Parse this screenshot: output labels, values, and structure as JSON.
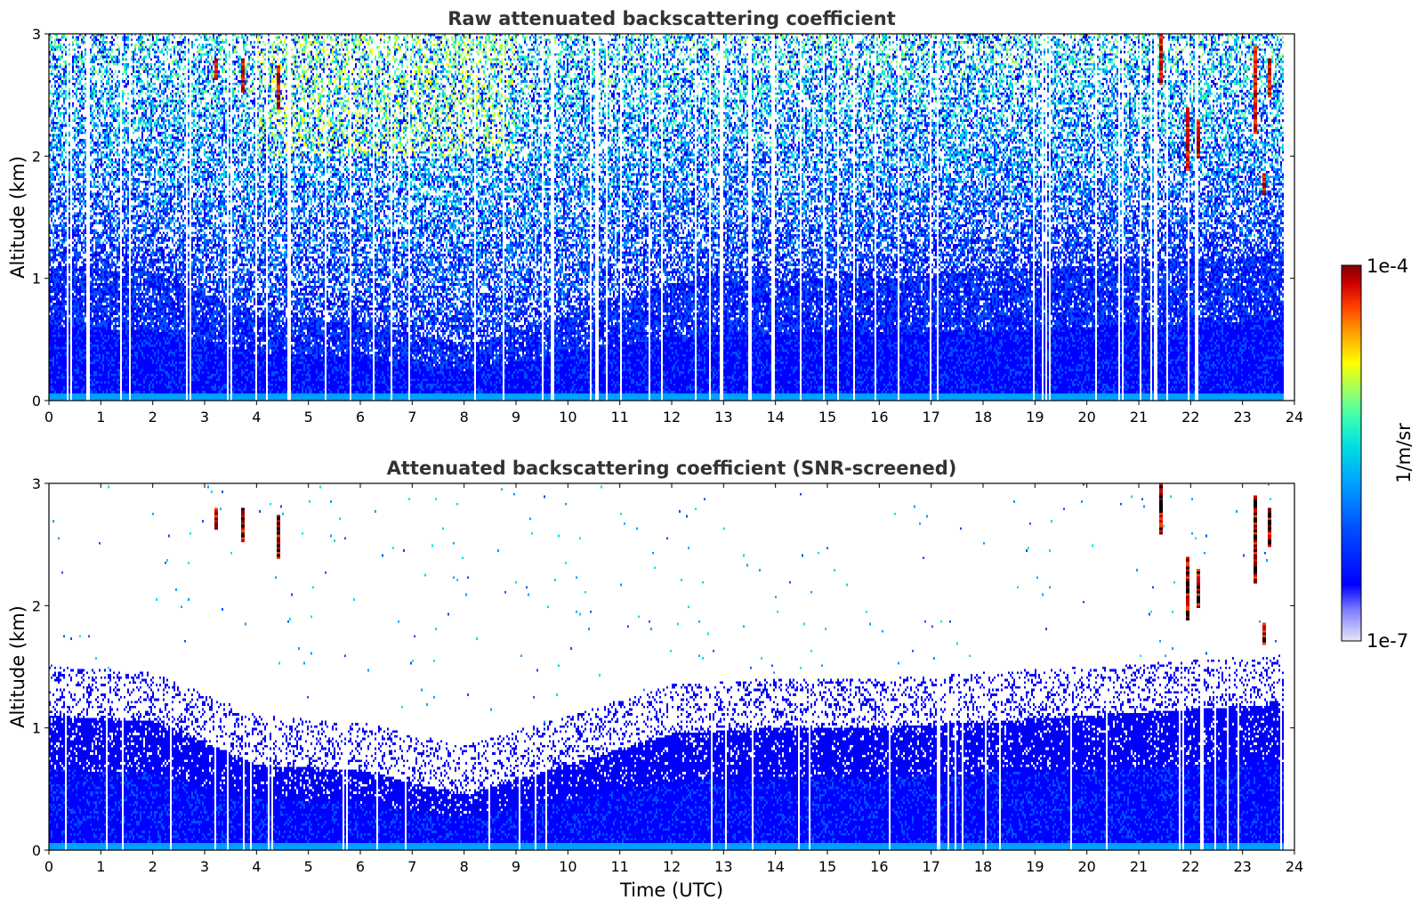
{
  "chart_data": [
    {
      "type": "heatmap",
      "title": "Raw attenuated backscattering coefficient",
      "xlabel": "",
      "ylabel": "Altitude (km)",
      "xlim": [
        0,
        24
      ],
      "ylim": [
        0,
        3
      ],
      "xticks": [
        0,
        1,
        2,
        3,
        4,
        5,
        6,
        7,
        8,
        9,
        10,
        11,
        12,
        13,
        14,
        15,
        16,
        17,
        18,
        19,
        20,
        21,
        22,
        23,
        24
      ],
      "yticks": [
        0,
        1,
        2,
        3
      ],
      "data_end_hour": 23.8,
      "mode": "raw",
      "features": [
        {
          "name": "boundary_layer_top_km",
          "x": [
            0,
            2,
            4,
            6,
            8,
            10,
            12,
            14,
            16,
            18,
            20,
            22,
            23.8
          ],
          "y": [
            1.1,
            1.05,
            0.7,
            0.65,
            0.45,
            0.7,
            0.95,
            1.0,
            1.0,
            1.05,
            1.1,
            1.15,
            1.2
          ]
        },
        {
          "name": "cloud_streaks",
          "items": [
            {
              "x": 3.7,
              "y0": 2.55,
              "y1": 2.8
            },
            {
              "x": 4.4,
              "y0": 2.4,
              "y1": 2.75
            },
            {
              "x": 3.2,
              "y0": 2.65,
              "y1": 2.8
            },
            {
              "x": 21.4,
              "y0": 2.6,
              "y1": 3.0
            },
            {
              "x": 21.9,
              "y0": 1.9,
              "y1": 2.4
            },
            {
              "x": 22.1,
              "y0": 2.0,
              "y1": 2.3
            },
            {
              "x": 23.2,
              "y0": 2.2,
              "y1": 2.9
            },
            {
              "x": 23.5,
              "y0": 2.5,
              "y1": 2.8
            },
            {
              "x": 23.4,
              "y0": 1.7,
              "y1": 1.85
            }
          ]
        }
      ]
    },
    {
      "type": "heatmap",
      "title": "Attenuated backscattering coefficient (SNR-screened)",
      "xlabel": "Time (UTC)",
      "ylabel": "Altitude (km)",
      "xlim": [
        0,
        24
      ],
      "ylim": [
        0,
        3
      ],
      "xticks": [
        0,
        1,
        2,
        3,
        4,
        5,
        6,
        7,
        8,
        9,
        10,
        11,
        12,
        13,
        14,
        15,
        16,
        17,
        18,
        19,
        20,
        21,
        22,
        23,
        24
      ],
      "yticks": [
        0,
        1,
        2,
        3
      ],
      "data_end_hour": 23.8,
      "mode": "screened",
      "features": [
        {
          "name": "boundary_layer_top_km",
          "x": [
            0,
            2,
            4,
            6,
            8,
            10,
            12,
            14,
            16,
            18,
            20,
            22,
            23.8
          ],
          "y": [
            1.1,
            1.05,
            0.7,
            0.65,
            0.45,
            0.7,
            0.95,
            1.0,
            1.0,
            1.05,
            1.1,
            1.15,
            1.2
          ]
        },
        {
          "name": "cloud_streaks",
          "items": [
            {
              "x": 3.7,
              "y0": 2.55,
              "y1": 2.8
            },
            {
              "x": 4.4,
              "y0": 2.4,
              "y1": 2.75
            },
            {
              "x": 3.2,
              "y0": 2.65,
              "y1": 2.8
            },
            {
              "x": 21.4,
              "y0": 2.6,
              "y1": 3.0
            },
            {
              "x": 21.9,
              "y0": 1.9,
              "y1": 2.4
            },
            {
              "x": 22.1,
              "y0": 2.0,
              "y1": 2.3
            },
            {
              "x": 23.2,
              "y0": 2.2,
              "y1": 2.9
            },
            {
              "x": 23.5,
              "y0": 2.5,
              "y1": 2.8
            },
            {
              "x": 23.4,
              "y0": 1.7,
              "y1": 1.85
            }
          ]
        }
      ]
    }
  ],
  "colorbar": {
    "label": "1/m/sr",
    "max_label": "1e-4",
    "min_label": "1e-7",
    "scale": "log",
    "range": [
      1e-07,
      0.0001
    ],
    "colors": [
      "#e6e6f5",
      "#8080ff",
      "#0000ff",
      "#0050ff",
      "#00a0ff",
      "#00e0e0",
      "#40ffb0",
      "#a0ff60",
      "#ffff00",
      "#ffa000",
      "#ff4000",
      "#d00000",
      "#800000"
    ]
  }
}
